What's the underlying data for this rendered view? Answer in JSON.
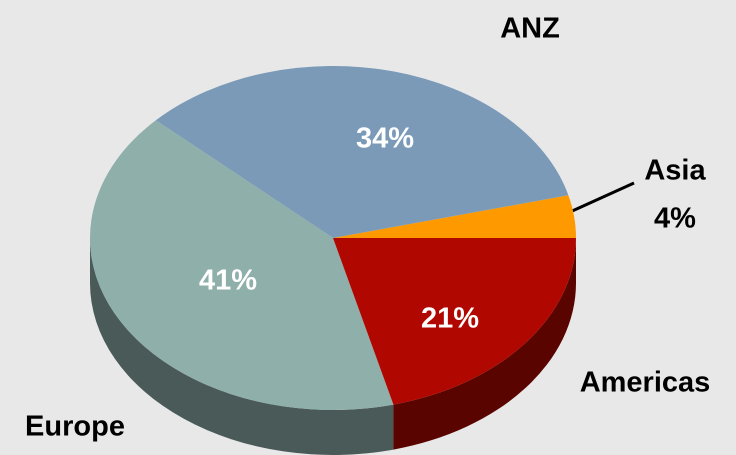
{
  "chart_data": {
    "type": "pie",
    "categories": [
      "Asia",
      "ANZ",
      "Europe",
      "Americas"
    ],
    "values": [
      4,
      34,
      41,
      21
    ],
    "value_labels": [
      "4%",
      "34%",
      "41%",
      "21%"
    ],
    "colors": [
      "#FF9900",
      "#7A9AB8",
      "#8FAFAA",
      "#B00800"
    ],
    "side_colors": [
      "#B36B00",
      "#4F6478",
      "#4A5A58",
      "#5A0400"
    ]
  }
}
